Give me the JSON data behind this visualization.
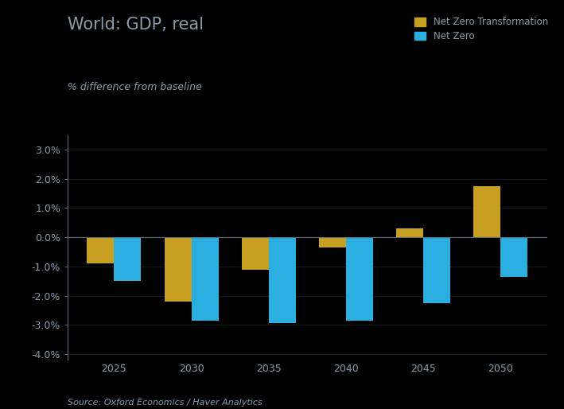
{
  "title": "World: GDP, real",
  "subtitle": "% difference from baseline",
  "source": "Source: Oxford Economics / Haver Analytics",
  "years": [
    2025,
    2030,
    2035,
    2040,
    2045,
    2050
  ],
  "net_zero_transformation": [
    -0.9,
    -2.2,
    -1.1,
    -0.35,
    0.3,
    1.75
  ],
  "net_zero": [
    -1.5,
    -2.85,
    -2.95,
    -2.85,
    -2.25,
    -1.35
  ],
  "color_transformation": "#C8A021",
  "color_net_zero": "#2AAEE0",
  "ylim": [
    -4.2,
    3.5
  ],
  "yticks": [
    -4.0,
    -3.0,
    -2.0,
    -1.0,
    0.0,
    1.0,
    2.0,
    3.0
  ],
  "bar_width": 0.35,
  "background_color": "#000000",
  "text_color": "#8a9bab",
  "title_color": "#8a9bab",
  "axis_color": "#5a6a7a",
  "legend_labels": [
    "Net Zero Transformation",
    "Net Zero"
  ],
  "title_fontsize": 15,
  "subtitle_fontsize": 9,
  "tick_fontsize": 9,
  "source_fontsize": 8
}
